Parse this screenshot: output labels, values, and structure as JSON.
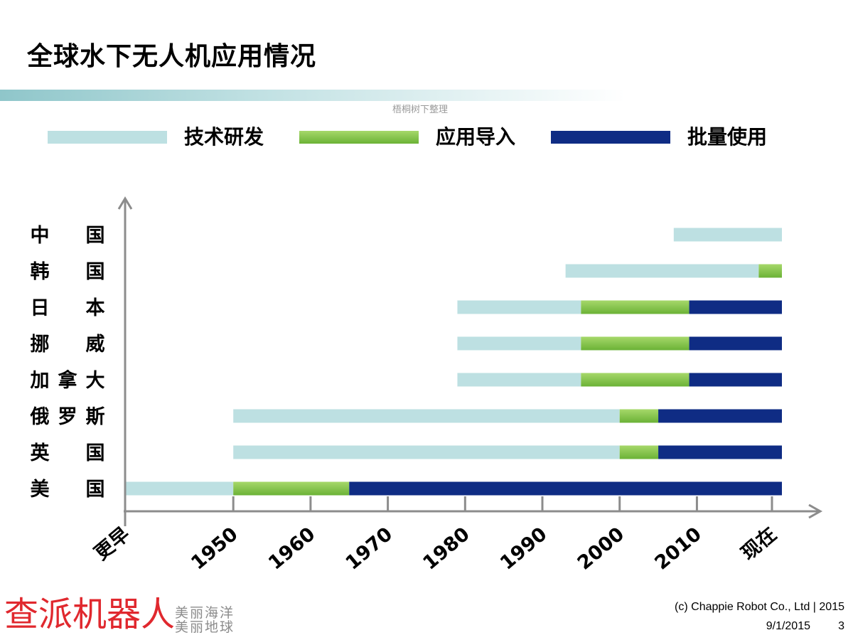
{
  "slide": {
    "title": "全球水下无人机应用情况",
    "watermark": "梧桐树下整理"
  },
  "colors": {
    "rd": "#bde0e2",
    "app_start": "#a6d86a",
    "app_end": "#6bb236",
    "mass": "#0f2c84",
    "axis": "#8c8c8c",
    "title_rule": "#8fc6ca",
    "logo": "#e0282e"
  },
  "chart_data": {
    "type": "gantt",
    "legend": [
      {
        "key": "rd",
        "label": "技术研发"
      },
      {
        "key": "app",
        "label": "应用导入"
      },
      {
        "key": "mass",
        "label": "批量使用"
      }
    ],
    "x_tick_labels": [
      "更早",
      "1950",
      "1960",
      "1970",
      "1980",
      "1990",
      "2000",
      "2010",
      "现在"
    ],
    "x_tick_values": [
      1936,
      1950,
      1960,
      1970,
      1980,
      1990,
      2000,
      2010,
      2020
    ],
    "x_range": [
      1936,
      2021
    ],
    "rows": [
      {
        "country": "中　国",
        "chars": [
          "中",
          "",
          "国"
        ],
        "segments": [
          {
            "phase": "rd",
            "start": 2007,
            "end": 2021
          }
        ]
      },
      {
        "country": "韩　国",
        "chars": [
          "韩",
          "",
          "国"
        ],
        "segments": [
          {
            "phase": "rd",
            "start": 1993,
            "end": 2018
          },
          {
            "phase": "app",
            "start": 2018,
            "end": 2021
          }
        ]
      },
      {
        "country": "日　本",
        "chars": [
          "日",
          "",
          "本"
        ],
        "segments": [
          {
            "phase": "rd",
            "start": 1979,
            "end": 1995
          },
          {
            "phase": "app",
            "start": 1995,
            "end": 2009
          },
          {
            "phase": "mass",
            "start": 2009,
            "end": 2021
          }
        ]
      },
      {
        "country": "挪　威",
        "chars": [
          "挪",
          "",
          "威"
        ],
        "segments": [
          {
            "phase": "rd",
            "start": 1979,
            "end": 1995
          },
          {
            "phase": "app",
            "start": 1995,
            "end": 2009
          },
          {
            "phase": "mass",
            "start": 2009,
            "end": 2021
          }
        ]
      },
      {
        "country": "加拿大",
        "chars": [
          "加",
          "拿",
          "大"
        ],
        "segments": [
          {
            "phase": "rd",
            "start": 1979,
            "end": 1995
          },
          {
            "phase": "app",
            "start": 1995,
            "end": 2009
          },
          {
            "phase": "mass",
            "start": 2009,
            "end": 2021
          }
        ]
      },
      {
        "country": "俄罗斯",
        "chars": [
          "俄",
          "罗",
          "斯"
        ],
        "segments": [
          {
            "phase": "rd",
            "start": 1950,
            "end": 2000
          },
          {
            "phase": "app",
            "start": 2000,
            "end": 2005
          },
          {
            "phase": "mass",
            "start": 2005,
            "end": 2021
          }
        ]
      },
      {
        "country": "英　国",
        "chars": [
          "英",
          "",
          "国"
        ],
        "segments": [
          {
            "phase": "rd",
            "start": 1950,
            "end": 2000
          },
          {
            "phase": "app",
            "start": 2000,
            "end": 2005
          },
          {
            "phase": "mass",
            "start": 2005,
            "end": 2021
          }
        ]
      },
      {
        "country": "美　国",
        "chars": [
          "美",
          "",
          "国"
        ],
        "segments": [
          {
            "phase": "rd",
            "start": 1936,
            "end": 1950
          },
          {
            "phase": "app",
            "start": 1950,
            "end": 1965
          },
          {
            "phase": "mass",
            "start": 1965,
            "end": 2021
          }
        ]
      }
    ]
  },
  "footer": {
    "logo_text": "查派机器人",
    "slogan_line1": "美丽海洋",
    "slogan_line2": "美丽地球",
    "copyright": "(c) Chappie Robot Co., Ltd | 2015",
    "date": "9/1/2015",
    "page_number": "3"
  }
}
